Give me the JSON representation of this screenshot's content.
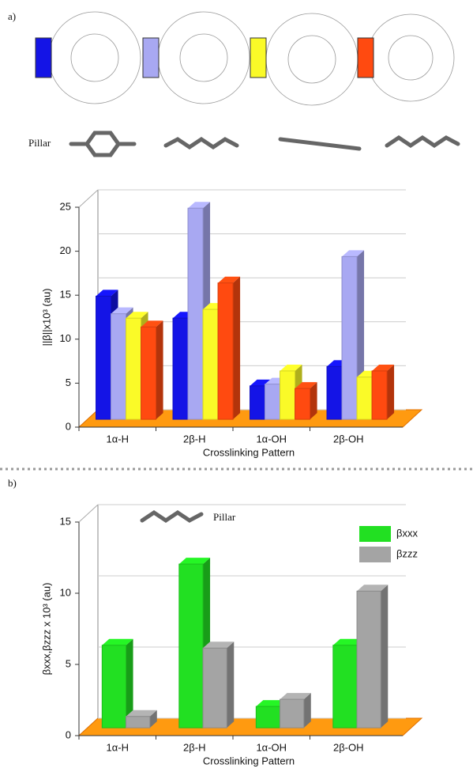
{
  "chart_data": [
    {
      "type": "bar3d",
      "panel_label": "a)",
      "annotation": "Pillar",
      "y_label": "||β||x10³ (au)",
      "x_label": "Crosslinking Pattern",
      "categories": [
        "1α-H",
        "2β-H",
        "1α-OH",
        "2β-OH"
      ],
      "series": [
        {
          "color": "#1414e6",
          "values": [
            14,
            11.5,
            3.8,
            6
          ]
        },
        {
          "color": "#a8a8f2",
          "values": [
            12,
            24,
            4,
            18.5
          ]
        },
        {
          "color": "#fafa28",
          "values": [
            11.5,
            12.5,
            5.5,
            4.8
          ]
        },
        {
          "color": "#ff4a10",
          "values": [
            10.5,
            15.5,
            3.5,
            5.5
          ]
        }
      ],
      "ylim": [
        0,
        25
      ],
      "yticks": [
        0,
        5,
        10,
        15,
        20,
        25
      ],
      "grid": true
    },
    {
      "type": "bar3d",
      "panel_label": "b)",
      "annotation": "Pillar",
      "y_label": "βxxx,βzzz x 10³ (au)",
      "x_label": "Crosslinking Pattern",
      "categories": [
        "1α-H",
        "2β-H",
        "1α-OH",
        "2β-OH"
      ],
      "series": [
        {
          "name": "βxxx",
          "color": "#22e022",
          "values": [
            5.8,
            11.5,
            1.5,
            5.8
          ]
        },
        {
          "name": "βzzz",
          "color": "#a4a4a4",
          "values": [
            0.8,
            5.6,
            2,
            9.6
          ]
        }
      ],
      "ylim": [
        0,
        15
      ],
      "yticks": [
        0,
        5,
        10,
        15
      ],
      "grid": true,
      "legend": "top-right"
    }
  ]
}
